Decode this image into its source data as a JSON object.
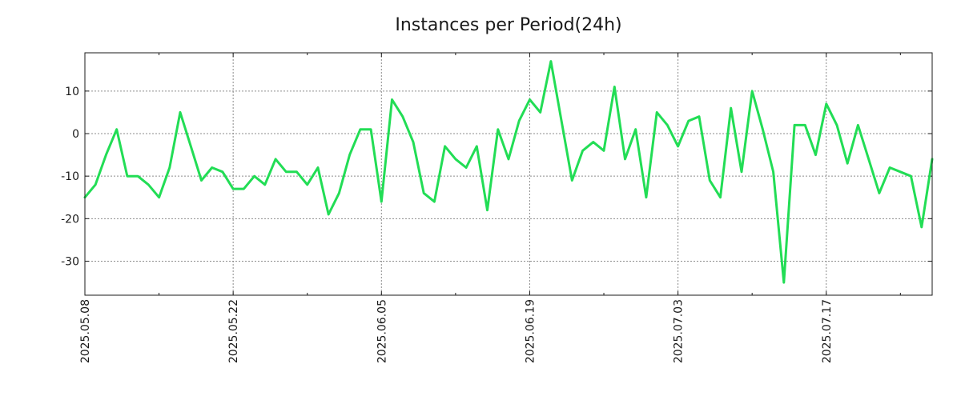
{
  "chart_data": {
    "type": "line",
    "title": "Instances per Period(24h)",
    "xlabel": "",
    "ylabel": "",
    "x_start": "2025-05-08",
    "x_step_days": 1,
    "xlim_days": [
      0,
      80
    ],
    "ylim": [
      -38,
      19
    ],
    "y_ticks": [
      10,
      0,
      -10,
      -20,
      -30
    ],
    "y_tick_labels": [
      "10",
      "0",
      "-10",
      "-20",
      "-30"
    ],
    "x_ticks_days": [
      0,
      14,
      28,
      42,
      56,
      70
    ],
    "x_tick_labels": [
      "2025.05.08",
      "2025.05.22",
      "2025.06.05",
      "2025.06.19",
      "2025.07.03",
      "2025.07.17"
    ],
    "x_minor_ticks_days": [
      7,
      21,
      35,
      49,
      63,
      77
    ],
    "grid": true,
    "series": [
      {
        "name": "Instances",
        "color": "#22dd55",
        "values": [
          -15,
          -12,
          -5,
          1,
          -10,
          -10,
          -12,
          -15,
          -8,
          5,
          -3,
          -11,
          -8,
          -9,
          -13,
          -13,
          -10,
          -12,
          -6,
          -9,
          -9,
          -12,
          -8,
          -19,
          -14,
          -5,
          1,
          1,
          -16,
          8,
          4,
          -2,
          -14,
          -16,
          -3,
          -6,
          -8,
          -3,
          -18,
          1,
          -6,
          3,
          8,
          5,
          17,
          3,
          -11,
          -4,
          -2,
          -4,
          11,
          -6,
          1,
          -15,
          5,
          2,
          -3,
          3,
          4,
          -11,
          -15,
          6,
          -9,
          10,
          1,
          -9,
          -35,
          2,
          2,
          -5,
          7,
          2,
          -7,
          2,
          -6,
          -14,
          -8,
          -9,
          -10,
          -22,
          -6
        ]
      }
    ]
  }
}
